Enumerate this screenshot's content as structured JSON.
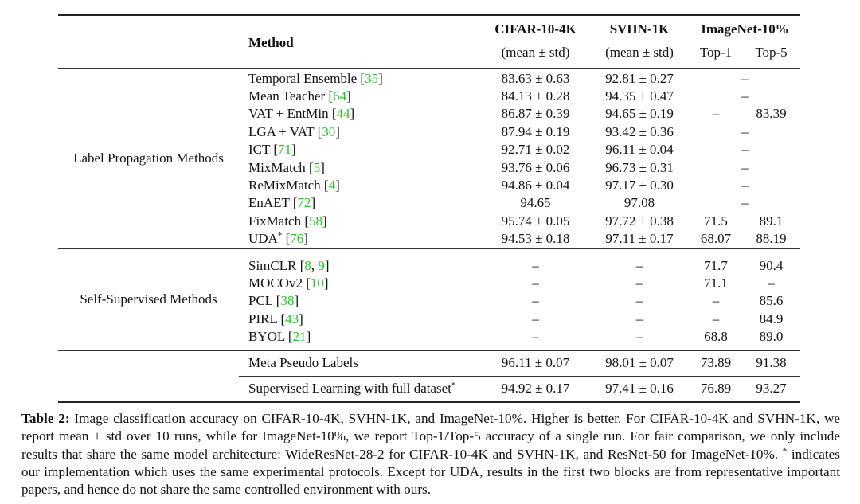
{
  "table": {
    "header": {
      "method": "Method",
      "columns": [
        {
          "title": "CIFAR-10-4K",
          "sub": "(mean ± std)"
        },
        {
          "title": "SVHN-1K",
          "sub": "(mean ± std)"
        },
        {
          "title": "ImageNet-10%",
          "sub": [
            "Top-1",
            "Top-5"
          ]
        }
      ]
    },
    "groups": [
      {
        "label": "Label Propagation Methods",
        "rows": [
          {
            "method": [
              {
                "text": "Temporal Ensemble ["
              },
              {
                "text": "35",
                "style": "cite"
              },
              {
                "text": "]"
              }
            ],
            "values": [
              "83.63 ± 0.63",
              "92.81 ± 0.27",
              "–"
            ]
          },
          {
            "method": [
              {
                "text": "Mean Teacher ["
              },
              {
                "text": "64",
                "style": "cite"
              },
              {
                "text": "]"
              }
            ],
            "values": [
              "84.13 ± 0.28",
              "94.35 ± 0.47",
              "–"
            ]
          },
          {
            "method": [
              {
                "text": "VAT + EntMin ["
              },
              {
                "text": "44",
                "style": "cite"
              },
              {
                "text": "]"
              }
            ],
            "values": [
              "86.87 ± 0.39",
              "94.65 ± 0.19",
              "–",
              "83.39"
            ]
          },
          {
            "method": [
              {
                "text": "LGA + VAT ["
              },
              {
                "text": "30",
                "style": "cite"
              },
              {
                "text": "]"
              }
            ],
            "values": [
              "87.94 ± 0.19",
              "93.42 ± 0.36",
              "–"
            ]
          },
          {
            "method": [
              {
                "text": "ICT ["
              },
              {
                "text": "71",
                "style": "cite"
              },
              {
                "text": "]"
              }
            ],
            "values": [
              "92.71 ± 0.02",
              "96.11 ± 0.04",
              "–"
            ]
          },
          {
            "method": [
              {
                "text": "MixMatch ["
              },
              {
                "text": "5",
                "style": "cite"
              },
              {
                "text": "]"
              }
            ],
            "values": [
              "93.76 ± 0.06",
              "96.73 ± 0.31",
              "–"
            ]
          },
          {
            "method": [
              {
                "text": "ReMixMatch ["
              },
              {
                "text": "4",
                "style": "cite"
              },
              {
                "text": "]"
              }
            ],
            "values": [
              "94.86 ± 0.04",
              "97.17 ± 0.30",
              "–"
            ]
          },
          {
            "method": [
              {
                "text": "EnAET ["
              },
              {
                "text": "72",
                "style": "cite"
              },
              {
                "text": "]"
              }
            ],
            "values": [
              "94.65",
              "97.08",
              "–"
            ]
          },
          {
            "method": [
              {
                "text": "FixMatch ["
              },
              {
                "text": "58",
                "style": "cite"
              },
              {
                "text": "]"
              }
            ],
            "values": [
              "95.74 ± 0.05",
              "97.72 ± 0.38",
              "71.5",
              "89.1"
            ]
          },
          {
            "method": [
              {
                "text": "UDA"
              },
              {
                "text": "*",
                "style": "sup"
              },
              {
                "text": " ["
              },
              {
                "text": "76",
                "style": "cite"
              },
              {
                "text": "]"
              }
            ],
            "values": [
              "94.53 ± 0.18",
              "97.11 ± 0.17",
              "68.07",
              "88.19"
            ]
          }
        ]
      },
      {
        "label": "Self-Supervised Methods",
        "rows": [
          {
            "method": [
              {
                "text": "SimCLR ["
              },
              {
                "text": "8",
                "style": "cite"
              },
              {
                "text": ", "
              },
              {
                "text": "9",
                "style": "cite"
              },
              {
                "text": "]"
              }
            ],
            "values": [
              "–",
              "–",
              "71.7",
              "90.4"
            ]
          },
          {
            "method": [
              {
                "text": "MOCOv2 ["
              },
              {
                "text": "10",
                "style": "cite"
              },
              {
                "text": "]"
              }
            ],
            "values": [
              "–",
              "–",
              "71.1",
              "–"
            ]
          },
          {
            "method": [
              {
                "text": "PCL ["
              },
              {
                "text": "38",
                "style": "cite"
              },
              {
                "text": "]"
              }
            ],
            "values": [
              "–",
              "–",
              "–",
              "85.6"
            ]
          },
          {
            "method": [
              {
                "text": "PIRL ["
              },
              {
                "text": "43",
                "style": "cite"
              },
              {
                "text": "]"
              }
            ],
            "values": [
              "–",
              "–",
              "–",
              "84.9"
            ]
          },
          {
            "method": [
              {
                "text": "BYOL ["
              },
              {
                "text": "21",
                "style": "cite"
              },
              {
                "text": "]"
              }
            ],
            "values": [
              "–",
              "–",
              "68.8",
              "89.0"
            ]
          }
        ]
      },
      {
        "bold": true,
        "rows": [
          {
            "method": [
              {
                "text": "Meta Pseudo Labels"
              }
            ],
            "values": [
              "96.11 ± 0.07",
              "98.01 ± 0.07",
              "73.89",
              "91.38"
            ]
          }
        ]
      },
      {
        "rows": [
          {
            "method": [
              {
                "text": "Supervised Learning with full dataset"
              },
              {
                "text": "*",
                "style": "sup"
              }
            ],
            "values": [
              "94.92 ± 0.17",
              "97.41 ± 0.16",
              "76.89",
              "93.27"
            ]
          }
        ]
      }
    ]
  },
  "caption": {
    "label": "Table 2:",
    "parts": [
      {
        "text": " Image classification accuracy on CIFAR-10-4K, SVHN-1K, and ImageNet-10%. Higher is better. For CIFAR-10-4K and SVHN-1K, we report mean ± std over 10 runs, while for ImageNet-10%, we report Top-1/Top-5 accuracy of a single run. For fair comparison, we only include results that share the same model architecture: WideResNet-28-2 for CIFAR-10-4K and SVHN-1K, and ResNet-50 for ImageNet-10%. "
      },
      {
        "text": "*",
        "style": "sup"
      },
      {
        "text": " indicates our implementation which uses the same experimental protocols. Except for UDA, results in the first two blocks are from representative important papers, and hence do not share the same controlled environment with ours."
      }
    ]
  }
}
